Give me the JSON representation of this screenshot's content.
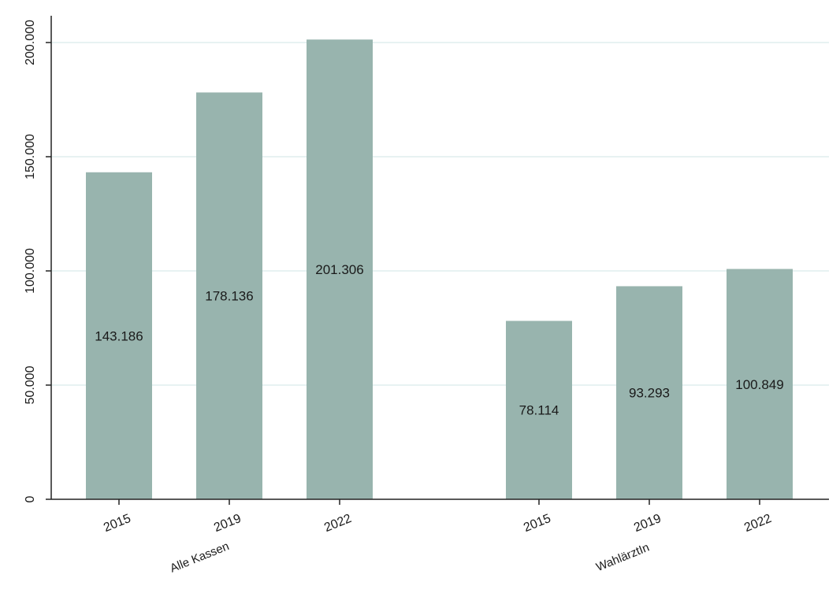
{
  "chart_data": {
    "type": "bar",
    "title": "",
    "xlabel": "",
    "ylabel": "",
    "ylim": [
      0,
      200000
    ],
    "yticks": [
      {
        "value": 0,
        "label": "0"
      },
      {
        "value": 50000,
        "label": "50.000"
      },
      {
        "value": 100000,
        "label": "100.000"
      },
      {
        "value": 150000,
        "label": "150.000"
      },
      {
        "value": 200000,
        "label": "200.000"
      }
    ],
    "grid": true,
    "legend": "none",
    "bar_color": "#98b4ae",
    "grid_color": "#dfeeee",
    "groups": [
      {
        "name": "Alle Kassen",
        "bars": [
          {
            "year": "2015",
            "value": 143186,
            "label": "143.186"
          },
          {
            "year": "2019",
            "value": 178136,
            "label": "178.136"
          },
          {
            "year": "2022",
            "value": 201306,
            "label": "201.306"
          }
        ]
      },
      {
        "name": "WahlärztIn",
        "bars": [
          {
            "year": "2015",
            "value": 78114,
            "label": "78.114"
          },
          {
            "year": "2019",
            "value": 93293,
            "label": "93.293"
          },
          {
            "year": "2022",
            "value": 100849,
            "label": "100.849"
          }
        ]
      }
    ]
  }
}
